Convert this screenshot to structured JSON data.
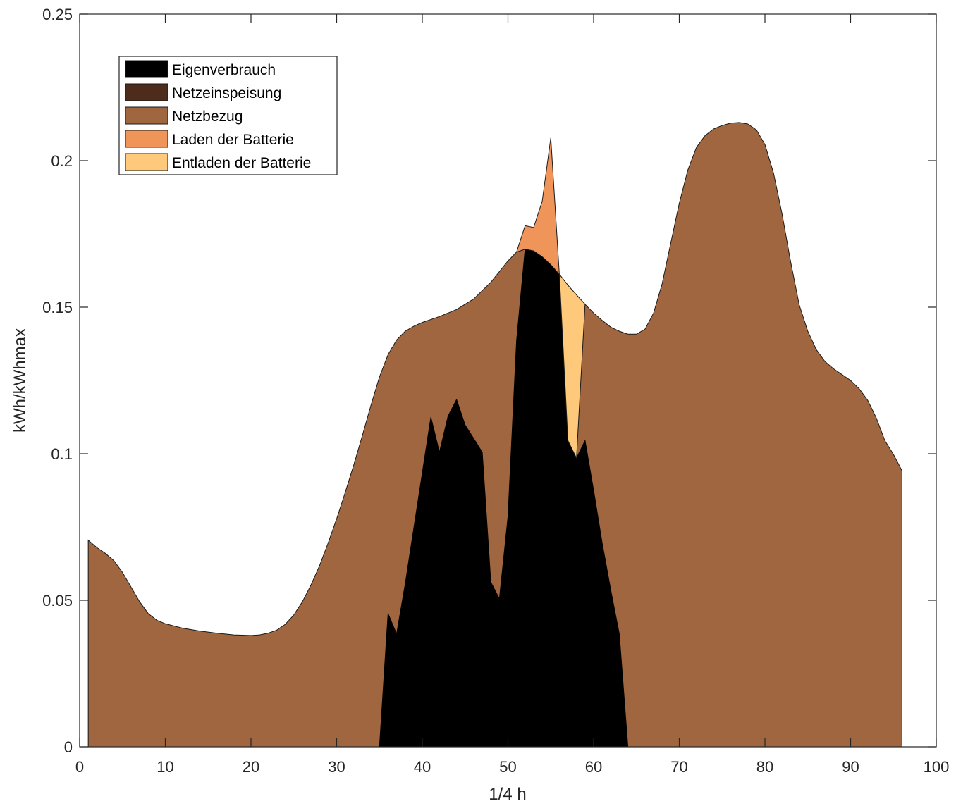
{
  "chart_data": {
    "type": "area",
    "title": "",
    "xlabel": "1/4 h",
    "ylabel": "kWh/kWhmax",
    "xlim": [
      0,
      100
    ],
    "ylim": [
      0,
      0.25
    ],
    "xticks": [
      0,
      10,
      20,
      30,
      40,
      50,
      60,
      70,
      80,
      90,
      100
    ],
    "yticks": [
      0,
      0.05,
      0.1,
      0.15,
      0.2,
      0.25
    ],
    "xtick_labels": [
      "0",
      "10",
      "20",
      "30",
      "40",
      "50",
      "60",
      "70",
      "80",
      "90",
      "100"
    ],
    "ytick_labels": [
      "0",
      "0.05",
      "0.1",
      "0.15",
      "0.2",
      "0.25"
    ],
    "grid": false,
    "legend_position": "top-left",
    "series": [
      {
        "name": "Netzbezug",
        "color": "#a0663f",
        "x": [
          1,
          2,
          3,
          4,
          5,
          6,
          7,
          8,
          9,
          10,
          12,
          14,
          16,
          18,
          20,
          21,
          22,
          23,
          24,
          25,
          26,
          27,
          28,
          29,
          30,
          31,
          32,
          33,
          34,
          35,
          36,
          37,
          38,
          39,
          40,
          42,
          44,
          46,
          48,
          50,
          51,
          52,
          53,
          54,
          55,
          56,
          57,
          58,
          59,
          60,
          61,
          62,
          63,
          64,
          65,
          66,
          67,
          68,
          69,
          70,
          71,
          72,
          73,
          74,
          75,
          76,
          77,
          78,
          79,
          80,
          81,
          82,
          83,
          84,
          85,
          86,
          87,
          88,
          89,
          90,
          91,
          92,
          93,
          94,
          95,
          96
        ],
        "y": [
          0.0705,
          0.068,
          0.066,
          0.0635,
          0.0595,
          0.0545,
          0.0495,
          0.0455,
          0.0432,
          0.042,
          0.0405,
          0.0395,
          0.0388,
          0.0382,
          0.038,
          0.0382,
          0.0388,
          0.0398,
          0.0418,
          0.045,
          0.0495,
          0.0552,
          0.0618,
          0.0695,
          0.0778,
          0.0868,
          0.0962,
          0.1062,
          0.1165,
          0.1262,
          0.1338,
          0.1388,
          0.1418,
          0.1435,
          0.1448,
          0.1468,
          0.1492,
          0.1528,
          0.1585,
          0.1658,
          0.1688,
          0.1698,
          0.1692,
          0.1672,
          0.1645,
          0.1612,
          0.1575,
          0.1542,
          0.151,
          0.148,
          0.1455,
          0.1432,
          0.1418,
          0.1408,
          0.1408,
          0.1425,
          0.148,
          0.158,
          0.1718,
          0.1855,
          0.1968,
          0.2045,
          0.2085,
          0.2108,
          0.212,
          0.2128,
          0.213,
          0.2125,
          0.2105,
          0.2055,
          0.1958,
          0.1818,
          0.1655,
          0.1508,
          0.1418,
          0.1355,
          0.1315,
          0.129,
          0.127,
          0.125,
          0.1222,
          0.1182,
          0.1122,
          0.1045,
          0.0998,
          0.0942
        ]
      },
      {
        "name": "Eigenverbrauch",
        "color": "#000000",
        "x": [
          35,
          36,
          37,
          38,
          39,
          40,
          41,
          42,
          43,
          44,
          45,
          46,
          47,
          48,
          49,
          50,
          51,
          52,
          53,
          54,
          55,
          56,
          57,
          58,
          59,
          60,
          61,
          62,
          63,
          64
        ],
        "y": [
          0,
          0.0455,
          0.0385,
          0.0555,
          0.0745,
          0.0935,
          0.1125,
          0.1005,
          0.1128,
          0.1185,
          0.1098,
          0.1052,
          0.1005,
          0.0562,
          0.0505,
          0.0785,
          0.1385,
          0.1698,
          0.1692,
          0.1672,
          0.1645,
          0.1612,
          0.1045,
          0.0985,
          0.1045,
          0.0875,
          0.0695,
          0.0535,
          0.0385,
          0
        ]
      },
      {
        "name": "Laden der Batterie",
        "color": "#f0955a",
        "x": [
          51,
          52,
          53,
          54,
          55,
          56
        ],
        "y": [
          0.1688,
          0.1778,
          0.1772,
          0.1862,
          0.2078,
          0.1612
        ]
      },
      {
        "name": "Entladen der Batterie",
        "color": "#fec97a",
        "x": [
          56,
          57,
          58,
          59
        ],
        "y": [
          0.1612,
          0.1575,
          0.1542,
          0.151
        ]
      },
      {
        "name": "Netzeinspeisung",
        "color": "#4d2c1b",
        "x": [],
        "y": []
      }
    ],
    "legend": [
      {
        "name": "Eigenverbrauch",
        "color": "#000000"
      },
      {
        "name": "Netzeinspeisung",
        "color": "#4d2c1b"
      },
      {
        "name": "Netzbezug",
        "color": "#a0663f"
      },
      {
        "name": "Laden der Batterie",
        "color": "#f0955a"
      },
      {
        "name": "Entladen der Batterie",
        "color": "#fec97a"
      }
    ]
  }
}
